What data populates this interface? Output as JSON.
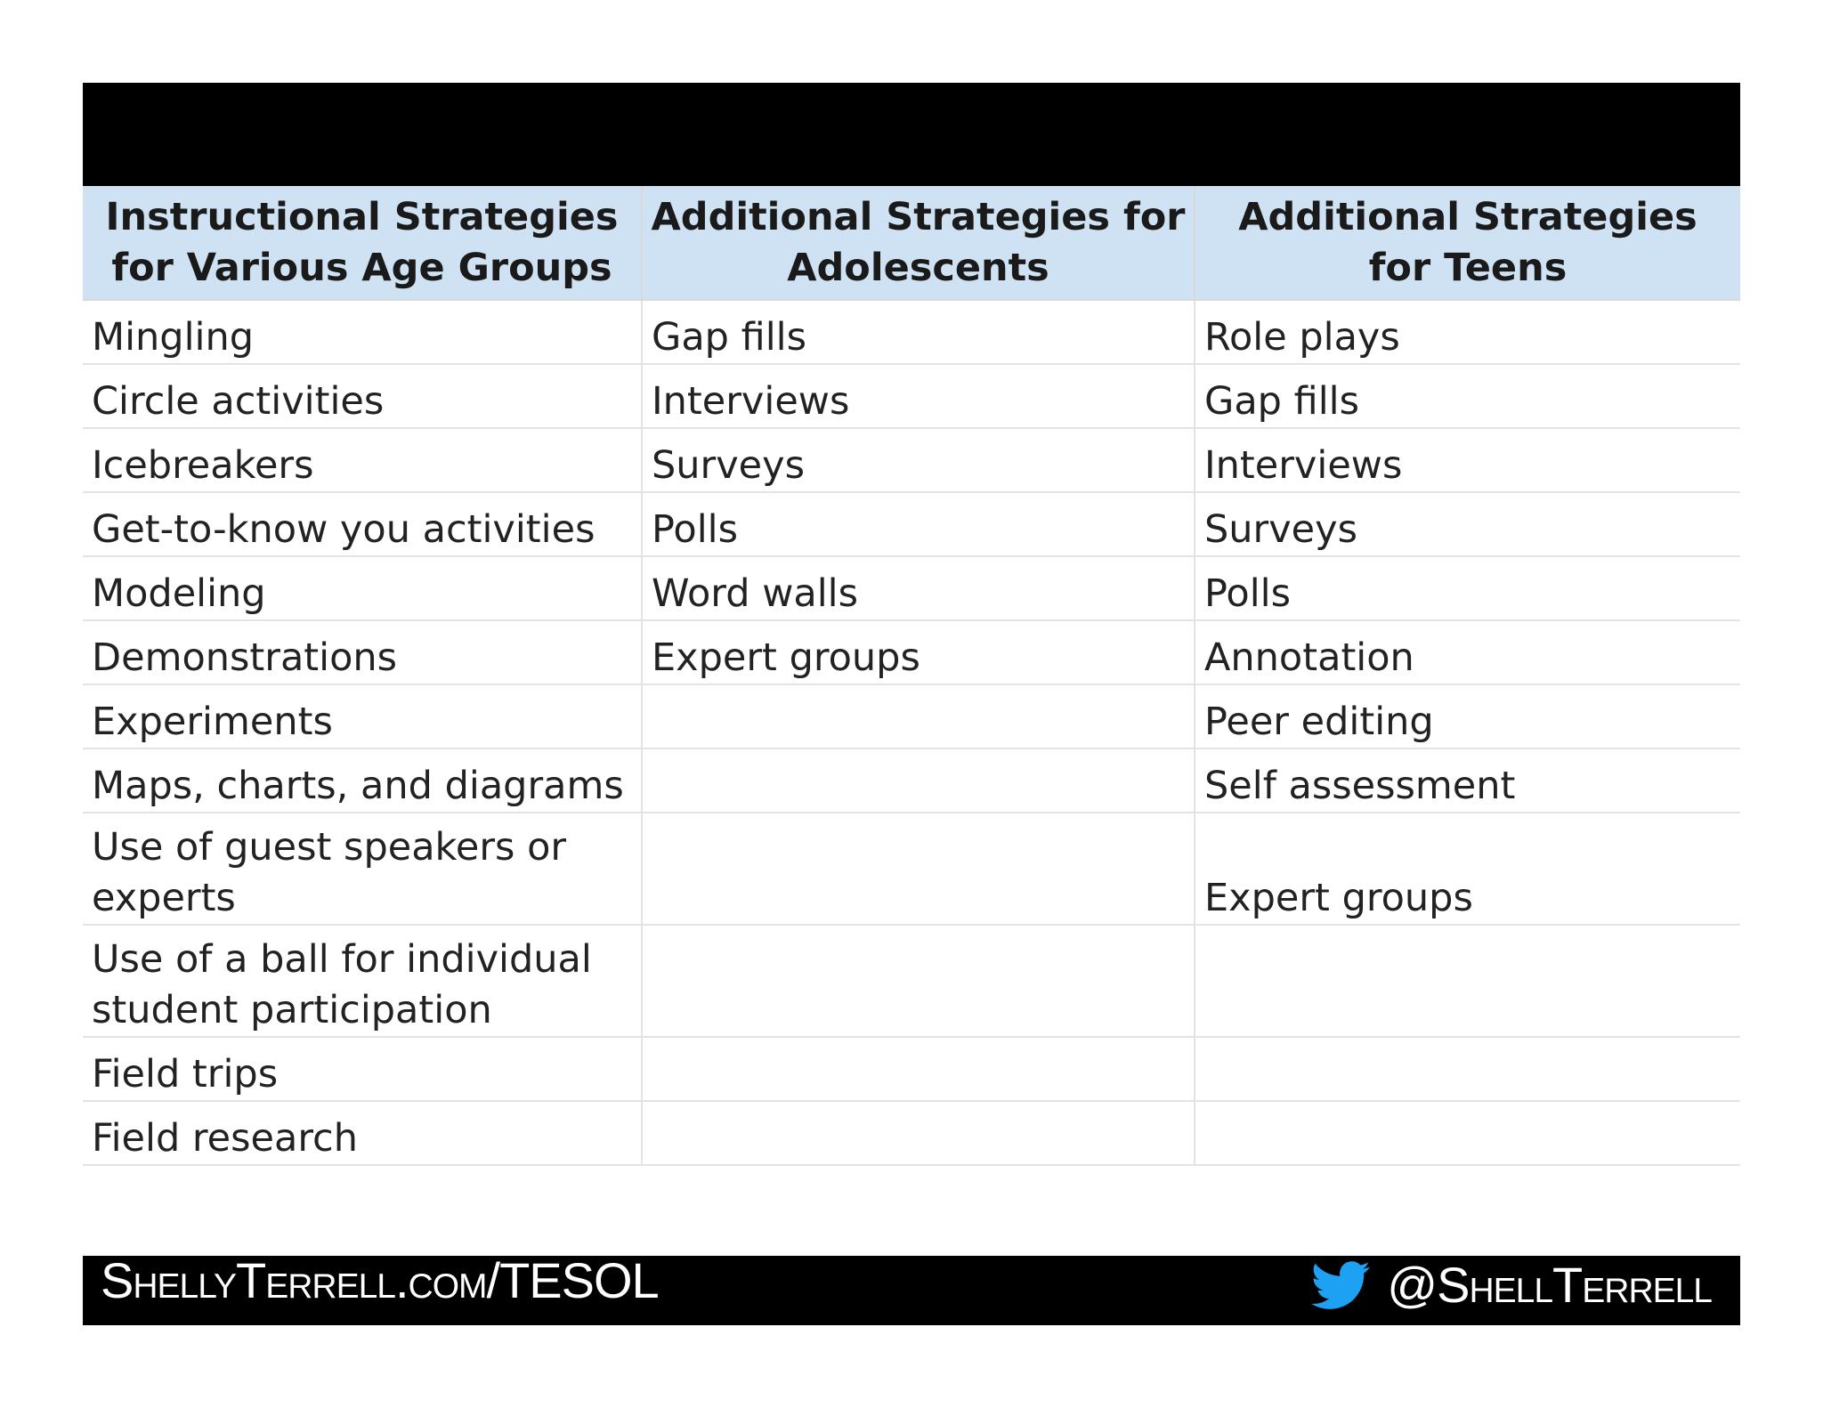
{
  "table": {
    "headers": [
      "Instructional Strategies for Various Age Groups",
      "Additional Strategies for Adolescents",
      "Additional Strategies for Teens"
    ],
    "rows": [
      [
        "Mingling",
        "Gap fills",
        "Role plays"
      ],
      [
        "Circle activities",
        "Interviews",
        "Gap fills"
      ],
      [
        "Icebreakers",
        "Surveys",
        "Interviews"
      ],
      [
        "Get-to-know you activities",
        "Polls",
        "Surveys"
      ],
      [
        "Modeling",
        "Word walls",
        "Polls"
      ],
      [
        "Demonstrations",
        "Expert groups",
        "Annotation"
      ],
      [
        "Experiments",
        "",
        "Peer editing"
      ],
      [
        "Maps, charts, and diagrams",
        "",
        "Self assessment"
      ],
      [
        "Use of guest speakers or experts",
        "",
        "Expert groups"
      ],
      [
        "Use of a ball for individual student participation",
        "",
        ""
      ],
      [
        "Field trips",
        "",
        ""
      ],
      [
        "Field research",
        "",
        ""
      ]
    ]
  },
  "footer": {
    "website": "ShellyTerrell.com/TESOL",
    "twitter_icon": "twitter-bird-icon",
    "twitter_icon_color": "#1da1f2",
    "handle": "@ShellTerrell"
  }
}
